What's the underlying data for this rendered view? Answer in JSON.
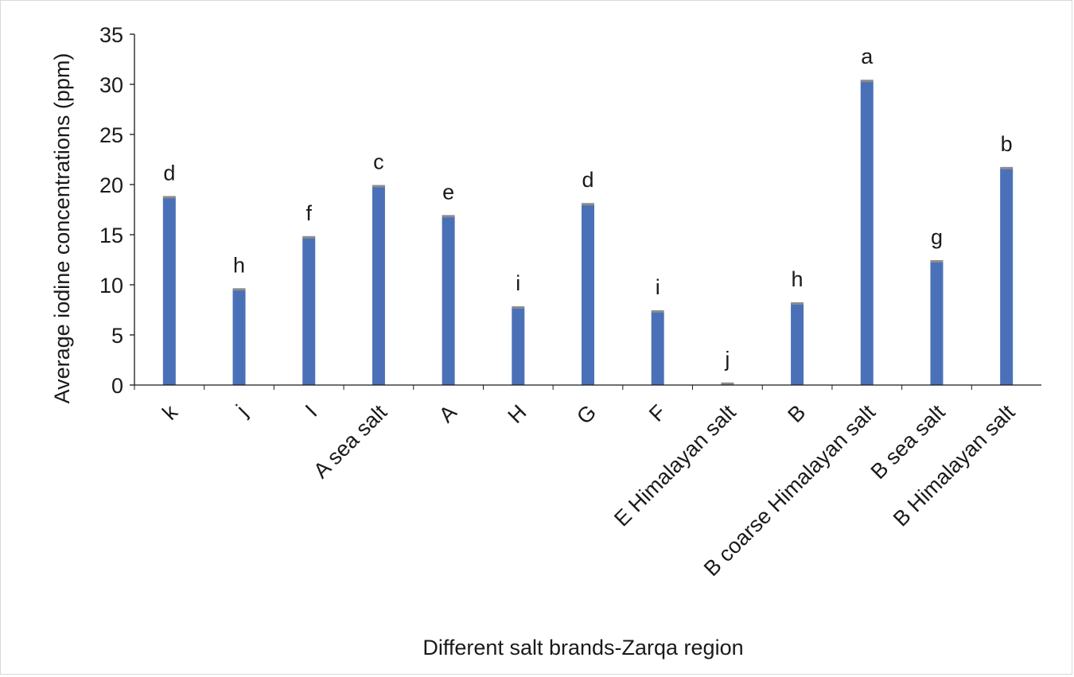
{
  "chart_data": {
    "type": "bar",
    "xlabel": "Different salt brands-Zarqa region",
    "ylabel": "Average iodine concentrations (ppm)",
    "ylim": [
      0,
      35
    ],
    "yticks": [
      0,
      5,
      10,
      15,
      20,
      25,
      30,
      35
    ],
    "grid": false,
    "categories": [
      "k",
      "j",
      "I",
      "A sea salt",
      "A",
      "H",
      "G",
      "F",
      "E Himalayan salt",
      "B",
      "B coarse Himalayan salt",
      "B sea salt",
      "B Himalayan salt"
    ],
    "values": [
      18.7,
      9.5,
      14.7,
      19.8,
      16.8,
      7.7,
      18.0,
      7.3,
      0.1,
      8.1,
      30.3,
      12.3,
      21.6
    ],
    "significance_letters": [
      "d",
      "h",
      "f",
      "c",
      "e",
      "i",
      "d",
      "i",
      "j",
      "h",
      "a",
      "g",
      "b"
    ],
    "colors": {
      "bar": "#4a71b8",
      "error_cap": "#8c8c8c",
      "axis": "#1a1a1a"
    }
  }
}
